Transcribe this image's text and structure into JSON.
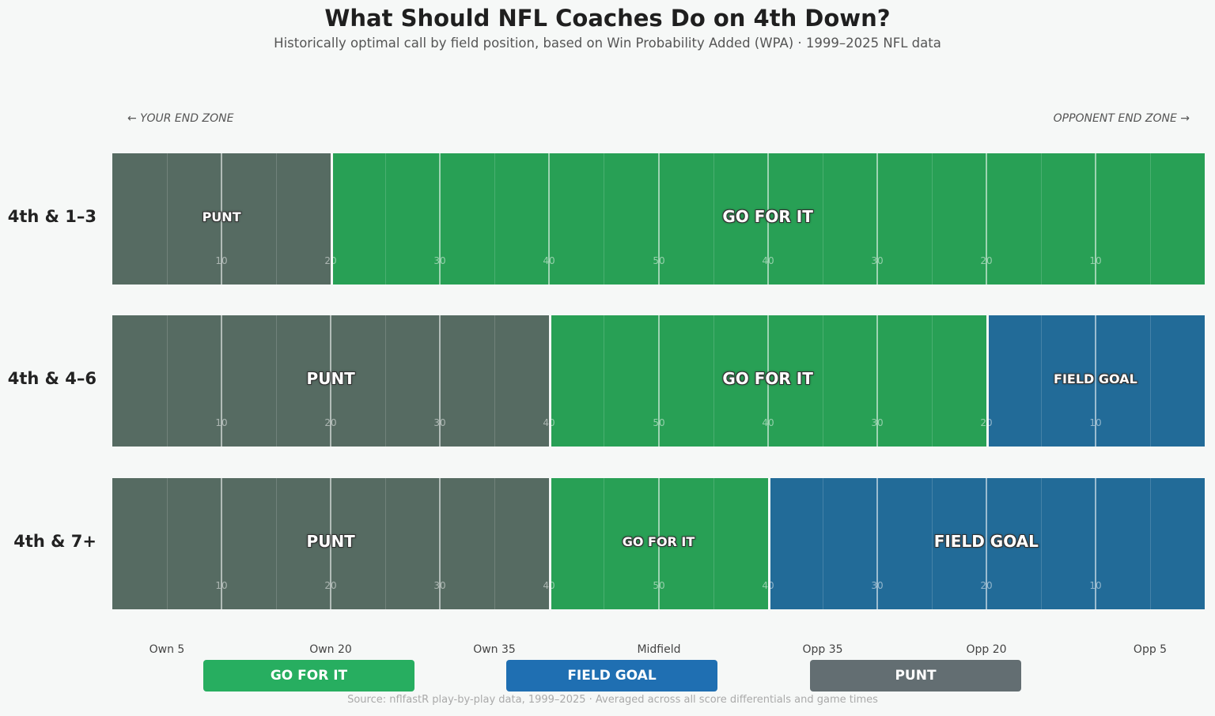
{
  "header": {
    "title": "What Should NFL Coaches Do on 4th Down?",
    "subtitle": "Historically optimal call by field position, based on Win Probability Added (WPA) · 1999–2025 NFL data"
  },
  "endzones": {
    "left": "← YOUR END ZONE",
    "right": "OPPONENT END ZONE →"
  },
  "legend": {
    "go": "GO FOR IT",
    "fg": "FIELD GOAL",
    "punt": "PUNT"
  },
  "source": "Source: nflfastR play-by-play data, 1999–2025 · Averaged across all score differentials and game times",
  "colors": {
    "go": "#28a055",
    "fg": "#226b98",
    "punt": "#566b62",
    "legend_go": "#27ae60",
    "legend_fg": "#1f6fb2",
    "legend_punt": "#636e72"
  },
  "chart_data": {
    "type": "heatmap",
    "x_axis": {
      "unit": "yards from own goal line",
      "range": [
        0,
        100
      ],
      "yard_markers": [
        "10",
        "20",
        "30",
        "40",
        "50",
        "40",
        "30",
        "20",
        "10"
      ],
      "position_labels": [
        "Own 5",
        "Own 20",
        "Own 35",
        "Midfield",
        "Opp 35",
        "Opp 20",
        "Opp 5"
      ]
    },
    "rows": [
      {
        "label": "4th & 1–3",
        "segments": [
          {
            "decision": "punt",
            "label": "PUNT",
            "from": 0,
            "to": 20
          },
          {
            "decision": "go",
            "label": "GO FOR IT",
            "from": 20,
            "to": 100
          }
        ]
      },
      {
        "label": "4th & 4–6",
        "segments": [
          {
            "decision": "punt",
            "label": "PUNT",
            "from": 0,
            "to": 40
          },
          {
            "decision": "go",
            "label": "GO FOR IT",
            "from": 40,
            "to": 80
          },
          {
            "decision": "fg",
            "label": "FIELD GOAL",
            "from": 80,
            "to": 100
          }
        ]
      },
      {
        "label": "4th & 7+",
        "segments": [
          {
            "decision": "punt",
            "label": "PUNT",
            "from": 0,
            "to": 40
          },
          {
            "decision": "go",
            "label": "GO FOR IT",
            "from": 40,
            "to": 60
          },
          {
            "decision": "fg",
            "label": "FIELD GOAL",
            "from": 60,
            "to": 100
          }
        ]
      }
    ]
  }
}
